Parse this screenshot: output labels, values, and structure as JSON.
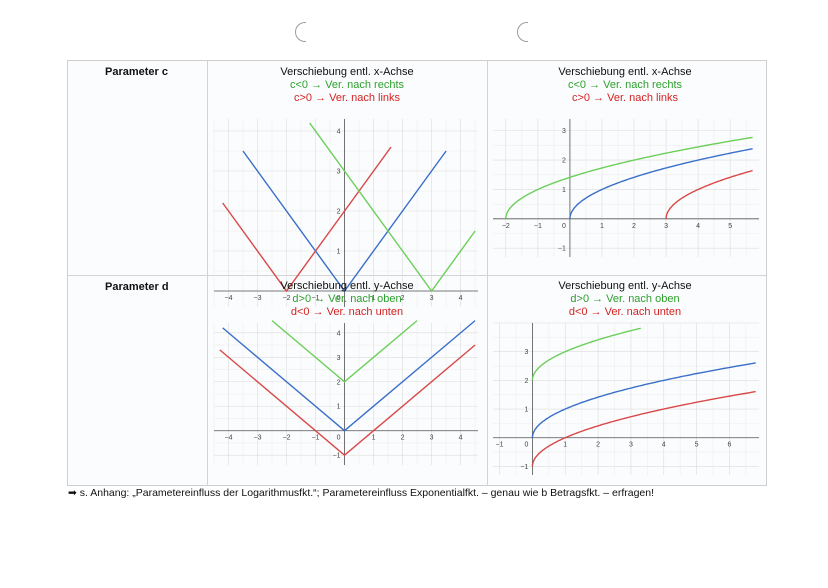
{
  "rows": [
    {
      "parameter_label": "Parameter c",
      "left_caption": {
        "title": "Verschiebung entl. x-Achse",
        "line_green": "c<0 → Ver. nach rechts",
        "line_red": "c>0 → Ver. nach links"
      },
      "right_caption": {
        "title": "Verschiebung entl. x-Achse",
        "line_green": "c<0 → Ver. nach rechts",
        "line_red": "c>0 → Ver. nach links"
      }
    },
    {
      "parameter_label": "Parameter d",
      "left_caption": {
        "title": "Verschiebung entl. y-Achse",
        "line_green": "d>0 → Ver. nach oben",
        "line_red": "d<0 → Ver. nach unten"
      },
      "right_caption": {
        "title": "Verschiebung entl. y-Achse",
        "line_green": "d>0 → Ver. nach oben",
        "line_red": "d<0 → Ver. nach unten"
      }
    }
  ],
  "footnote": "➡ s. Anhang: „Parametereinfluss der Logarithmusfkt.“; Parametereinfluss Exponentialfkt. – genau wie b Betragsfkt. – erfragen!",
  "colors": {
    "blue": "#3a6fc9",
    "green": "#6ccf5a",
    "red": "#d94848"
  },
  "chart_data": [
    {
      "type": "line",
      "x_ticks": [
        -4,
        -3,
        -2,
        -1,
        1,
        2,
        3,
        4
      ],
      "y_ticks": [
        1,
        2,
        3,
        4
      ],
      "xlim": [
        -4.5,
        4.6
      ],
      "ylim": [
        -0.4,
        4.3
      ],
      "series": [
        {
          "color": "blue",
          "x": [
            -3.5,
            0,
            3.5
          ],
          "y": [
            3.5,
            0,
            3.5
          ]
        },
        {
          "color": "red",
          "x": [
            -4.2,
            -2,
            1.6
          ],
          "y": [
            2.2,
            0,
            3.6
          ]
        },
        {
          "color": "green",
          "x": [
            -1.2,
            3,
            4.5
          ],
          "y": [
            4.2,
            0,
            1.5
          ]
        }
      ]
    },
    {
      "type": "line",
      "x_ticks": [
        -2,
        -1,
        1,
        2,
        3,
        4,
        5
      ],
      "y_ticks": [
        -1,
        1,
        2,
        3
      ],
      "xlim": [
        -2.4,
        5.9
      ],
      "ylim": [
        -1.3,
        3.4
      ],
      "series": [
        {
          "color": "blue",
          "func": "sqrt",
          "shift": 0,
          "x_end": 5.7
        },
        {
          "color": "green",
          "func": "sqrt",
          "shift": -2,
          "x_end": 5.7
        },
        {
          "color": "red",
          "func": "sqrt",
          "shift": 3,
          "x_end": 5.7
        }
      ]
    },
    {
      "type": "line",
      "x_ticks": [
        -4,
        -3,
        -2,
        -1,
        1,
        2,
        3,
        4
      ],
      "y_ticks": [
        -1,
        1,
        2,
        3,
        4
      ],
      "xlim": [
        -4.5,
        4.6
      ],
      "ylim": [
        -1.4,
        4.4
      ],
      "series": [
        {
          "color": "blue",
          "x": [
            -4.2,
            0,
            4.5
          ],
          "y": [
            4.2,
            0,
            4.5
          ]
        },
        {
          "color": "green",
          "x": [
            -2.5,
            0,
            2.5
          ],
          "y": [
            4.5,
            2,
            4.5
          ]
        },
        {
          "color": "red",
          "x": [
            -4.3,
            0,
            4.5
          ],
          "y": [
            3.3,
            -1,
            3.5
          ]
        }
      ]
    },
    {
      "type": "line",
      "x_ticks": [
        -1,
        1,
        2,
        3,
        4,
        5,
        6
      ],
      "y_ticks": [
        -1,
        1,
        2,
        3
      ],
      "xlim": [
        -1.2,
        6.9
      ],
      "ylim": [
        -1.3,
        4.0
      ],
      "series": [
        {
          "color": "blue",
          "func": "sqrt_y",
          "dy": 0,
          "x_end": 6.8
        },
        {
          "color": "green",
          "func": "sqrt_y",
          "dy": 2,
          "x_end": 3.3
        },
        {
          "color": "red",
          "func": "sqrt_y",
          "dy": -1,
          "x_end": 6.8
        }
      ]
    }
  ]
}
